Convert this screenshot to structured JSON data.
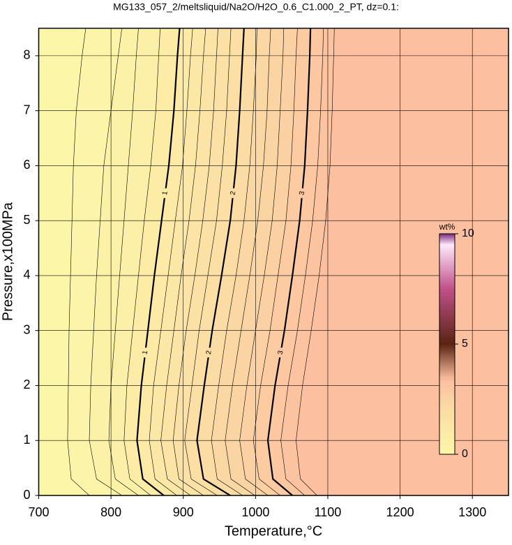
{
  "chart_data": {
    "type": "contour",
    "title": "MG133_057_2/meltsliquid/Na2O/H2O_0.6_C1.000_2_PT, dz=0.1:",
    "x_label": "Temperature,°C",
    "y_label": "Pressure,x100MPa",
    "xlim": [
      700,
      1350
    ],
    "ylim": [
      0,
      8.5
    ],
    "xticks": [
      700,
      800,
      900,
      1000,
      1100,
      1200,
      1300
    ],
    "yticks": [
      0,
      1,
      2,
      3,
      4,
      5,
      6,
      7,
      8
    ],
    "grid": true,
    "pressures": [
      0,
      0.3,
      1,
      2,
      3,
      4,
      5,
      6,
      7,
      8,
      8.5
    ],
    "contours": [
      {
        "level": 0.2,
        "x": [
          770,
          745,
          740,
          741,
          742,
          744,
          746,
          748,
          752,
          760,
          765
        ]
      },
      {
        "level": 0.4,
        "x": [
          815,
          780,
          770,
          772,
          776,
          780,
          785,
          790,
          800,
          810,
          815
        ]
      },
      {
        "level": 0.6,
        "x": [
          838,
          806,
          797,
          800,
          806,
          812,
          818,
          824,
          830,
          835,
          838
        ]
      },
      {
        "level": 0.8,
        "x": [
          855,
          826,
          818,
          822,
          830,
          838,
          846,
          855,
          862,
          866,
          868
        ]
      },
      {
        "level": 1,
        "bold": true,
        "x": [
          873,
          844,
          836,
          842,
          851,
          860,
          870,
          880,
          887,
          892,
          895
        ]
      },
      {
        "level": 1.2,
        "x": [
          891,
          861,
          853,
          859,
          869,
          879,
          889,
          899,
          905,
          910,
          913
        ]
      },
      {
        "level": 1.4,
        "x": [
          910,
          878,
          869,
          877,
          887,
          897,
          908,
          917,
          923,
          928,
          931
        ]
      },
      {
        "level": 1.6,
        "x": [
          928,
          894,
          886,
          894,
          904,
          916,
          927,
          936,
          942,
          946,
          948
        ]
      },
      {
        "level": 1.8,
        "x": [
          947,
          911,
          902,
          912,
          922,
          934,
          946,
          954,
          960,
          964,
          966
        ]
      },
      {
        "level": 2,
        "bold": true,
        "x": [
          965,
          928,
          919,
          929,
          940,
          953,
          965,
          973,
          978,
          982,
          984
        ]
      },
      {
        "level": 2.2,
        "x": [
          982,
          947,
          939,
          949,
          960,
          973,
          984,
          992,
          997,
          1001,
          1002
        ]
      },
      {
        "level": 2.4,
        "x": [
          999,
          966,
          958,
          968,
          980,
          992,
          1003,
          1011,
          1016,
          1019,
          1021
        ]
      },
      {
        "level": 2.6,
        "x": [
          1017,
          986,
          978,
          988,
          1000,
          1012,
          1023,
          1030,
          1034,
          1038,
          1039
        ]
      },
      {
        "level": 2.8,
        "x": [
          1034,
          1005,
          997,
          1007,
          1020,
          1031,
          1042,
          1049,
          1053,
          1056,
          1058
        ]
      },
      {
        "level": 3,
        "bold": true,
        "x": [
          1051,
          1024,
          1017,
          1027,
          1040,
          1051,
          1061,
          1068,
          1072,
          1075,
          1076
        ]
      },
      {
        "level": 3.2,
        "x": [
          1068,
          1042,
          1035,
          1045,
          1058,
          1069,
          1079,
          1086,
          1090,
          1093,
          1094
        ]
      },
      {
        "level": 3.4,
        "x": [
          1085,
          1062,
          1056,
          1065,
          1077,
          1088,
          1097,
          1103,
          1106,
          1108,
          1109
        ]
      }
    ],
    "colorbar": {
      "label": "wt%",
      "lim": [
        0,
        10
      ],
      "ticks": [
        0,
        5,
        10
      ]
    },
    "colormap": [
      [
        0,
        "#fcf7a8"
      ],
      [
        2,
        "#fbdca4"
      ],
      [
        3.4,
        "#fcbfa0"
      ],
      [
        5,
        "#5a2412"
      ],
      [
        7.5,
        "#c0508a"
      ],
      [
        9.5,
        "#fde8fa"
      ],
      [
        10,
        "#7a2a7a"
      ]
    ]
  }
}
